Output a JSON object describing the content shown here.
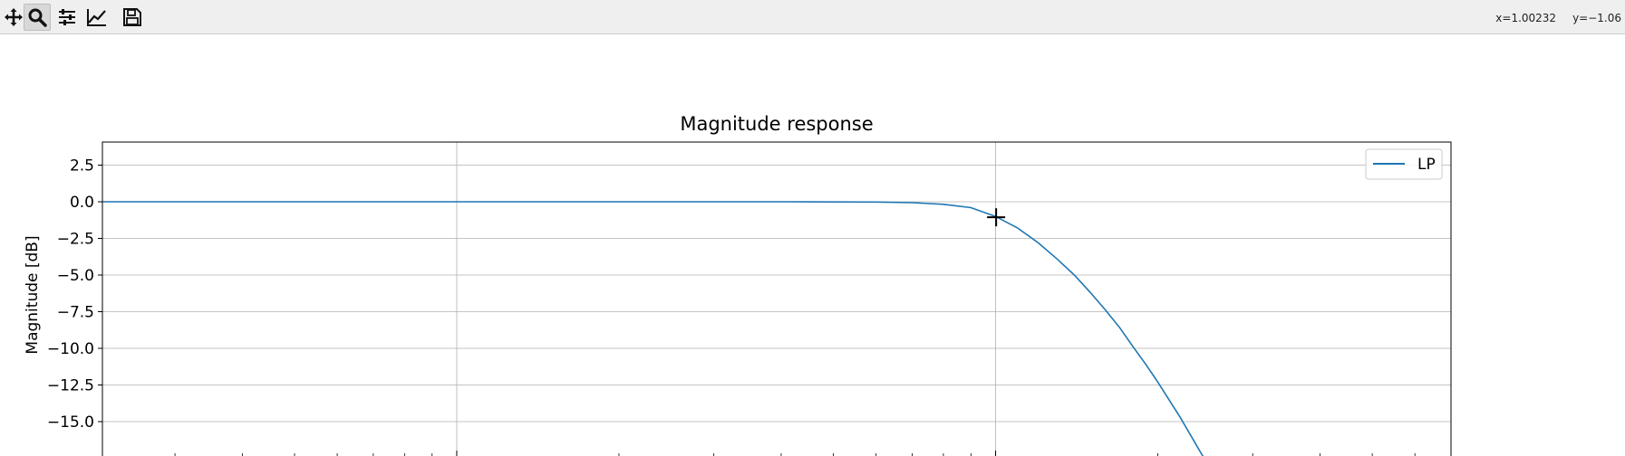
{
  "toolbar": {
    "buttons": [
      {
        "name": "pan-button",
        "icon": "move-arrows-icon",
        "active": false
      },
      {
        "name": "zoom-button",
        "icon": "magnifier-icon",
        "active": true
      },
      {
        "name": "subplots-button",
        "icon": "sliders-icon",
        "active": false
      },
      {
        "name": "axes-edit-button",
        "icon": "line-chart-icon",
        "active": false
      },
      {
        "name": "save-button",
        "icon": "floppy-disk-icon",
        "active": false
      }
    ],
    "coords": {
      "x": "x=1.00232",
      "y": "y=−1.06"
    }
  },
  "chart_data": {
    "type": "line",
    "title": "Magnitude response",
    "xlabel": "",
    "ylabel": "Magnitude [dB]",
    "xscale": "log",
    "xlim": [
      0.022,
      7.0
    ],
    "ylim": [
      -17.0,
      4.0
    ],
    "ytick_labels": [
      "2.5",
      "0.0",
      "−2.5",
      "−5.0",
      "−7.5",
      "−10.0",
      "−12.5",
      "−15.0"
    ],
    "ytick_values": [
      2.5,
      0.0,
      -2.5,
      -5.0,
      -7.5,
      -10.0,
      -12.5,
      -15.0
    ],
    "xgrid_major": [
      0.01,
      0.1,
      1,
      10
    ],
    "grid": true,
    "legend": {
      "position": "top-right",
      "entries": [
        "LP"
      ]
    },
    "series": [
      {
        "name": "LP",
        "color": "#1f77b4",
        "x": [
          0.01,
          0.02,
          0.05,
          0.1,
          0.2,
          0.3,
          0.4,
          0.5,
          0.6,
          0.7,
          0.8,
          0.9,
          1.0,
          1.1,
          1.2,
          1.3,
          1.4,
          1.5,
          1.6,
          1.7,
          1.8,
          1.9,
          2.0,
          2.2,
          2.5
        ],
        "y": [
          0.0,
          0.0,
          0.0,
          0.0,
          0.0,
          0.0,
          0.0,
          -0.01,
          -0.02,
          -0.06,
          -0.17,
          -0.4,
          -1.0,
          -1.8,
          -2.8,
          -3.9,
          -5.0,
          -6.2,
          -7.4,
          -8.6,
          -9.9,
          -11.1,
          -12.3,
          -14.7,
          -18.2
        ]
      }
    ],
    "cursor": {
      "x": 1.00232,
      "y": -1.06
    }
  }
}
